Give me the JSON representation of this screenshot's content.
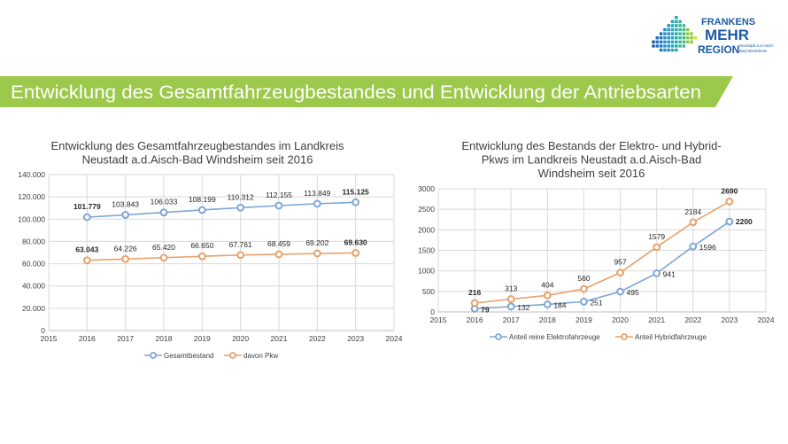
{
  "banner": {
    "title": "Entwicklung des Gesamtfahrzeugbestandes  und Entwicklung der Antriebsarten",
    "color": "#9cc84b"
  },
  "logo": {
    "line1": "FRANKENS",
    "line2": "MEHR",
    "line3": "REGION",
    "sub1": "Neustadt a.d.Aisch-",
    "sub2": "Bad Windsheim"
  },
  "chart_data": [
    {
      "type": "line",
      "title_lines": [
        "Entwicklung des Gesamtfahrzeugbestandes im Landkreis",
        "Neustadt a.d.Aisch-Bad Windsheim seit 2016"
      ],
      "x": [
        2016,
        2017,
        2018,
        2019,
        2020,
        2021,
        2022,
        2023
      ],
      "xlim": [
        2015,
        2024
      ],
      "ylim": [
        0,
        140000
      ],
      "x_ticks": [
        "2015",
        "2016",
        "2017",
        "2018",
        "2019",
        "2020",
        "2021",
        "2022",
        "2023",
        "2024"
      ],
      "y_ticks": [
        "0",
        "20.000",
        "40.000",
        "60.000",
        "80.000",
        "100.000",
        "120.000",
        "140.000"
      ],
      "grid": true,
      "legend_position": "bottom",
      "series": [
        {
          "name": "Gesamtbestand",
          "color": "#7ea6d6",
          "values": [
            101779,
            103843,
            106033,
            108199,
            110312,
            112155,
            113849,
            115125
          ],
          "labels": [
            "101.779",
            "103.843",
            "106.033",
            "108.199",
            "110.312",
            "112.155",
            "113.849",
            "115.125"
          ]
        },
        {
          "name": "davon Pkw",
          "color": "#e8a06a",
          "values": [
            63043,
            64226,
            65420,
            66650,
            67761,
            68459,
            69202,
            69630
          ],
          "labels": [
            "63.043",
            "64.226",
            "65.420",
            "66.650",
            "67.761",
            "68.459",
            "69.202",
            "69.630"
          ]
        }
      ]
    },
    {
      "type": "line",
      "title_lines": [
        "Entwicklung des Bestands der Elektro- und Hybrid-",
        "Pkws im Landkreis Neustadt a.d.Aisch-Bad",
        "Windsheim seit 2016"
      ],
      "x": [
        2016,
        2017,
        2018,
        2019,
        2020,
        2021,
        2022,
        2023
      ],
      "xlim": [
        2015,
        2024
      ],
      "ylim": [
        0,
        3000
      ],
      "x_ticks": [
        "2015",
        "2016",
        "2017",
        "2018",
        "2019",
        "2020",
        "2021",
        "2022",
        "2023",
        "2024"
      ],
      "y_ticks": [
        "0",
        "500",
        "1000",
        "1500",
        "2000",
        "2500",
        "3000"
      ],
      "grid": true,
      "legend_position": "bottom",
      "series": [
        {
          "name": "Anteil reine Elektrofahrzeuge",
          "color": "#7ea6d6",
          "values": [
            79,
            132,
            184,
            251,
            495,
            941,
            1596,
            2200
          ],
          "labels": [
            "79",
            "132",
            "184",
            "251",
            "495",
            "941",
            "1596",
            "2200"
          ]
        },
        {
          "name": "Anteil Hybridfahrzeuge",
          "color": "#e8a06a",
          "values": [
            216,
            313,
            404,
            560,
            957,
            1579,
            2184,
            2690
          ],
          "labels": [
            "216",
            "313",
            "404",
            "560",
            "957",
            "1579",
            "2184",
            "2690"
          ]
        }
      ]
    }
  ]
}
